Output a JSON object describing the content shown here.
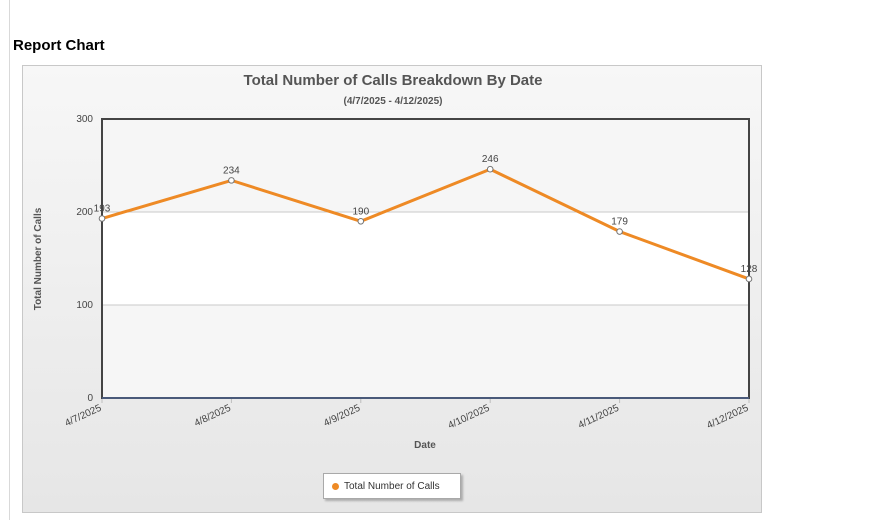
{
  "page": {
    "section_title": "Report Chart"
  },
  "chart_data": {
    "type": "line",
    "title": "Total Number of Calls Breakdown By Date",
    "subtitle": "(4/7/2025 - 4/12/2025)",
    "xlabel": "Date",
    "ylabel": "Total Number of Calls",
    "categories": [
      "4/7/2025",
      "4/8/2025",
      "4/9/2025",
      "4/10/2025",
      "4/11/2025",
      "4/12/2025"
    ],
    "series": [
      {
        "name": "Total Number of Calls",
        "values": [
          193,
          234,
          190,
          246,
          179,
          128
        ],
        "color": "#ee8a25"
      }
    ],
    "ylim": [
      0,
      300
    ],
    "yticks": [
      0,
      100,
      200,
      300
    ],
    "grid": true,
    "legend_position": "bottom-center",
    "data_labels": true
  }
}
